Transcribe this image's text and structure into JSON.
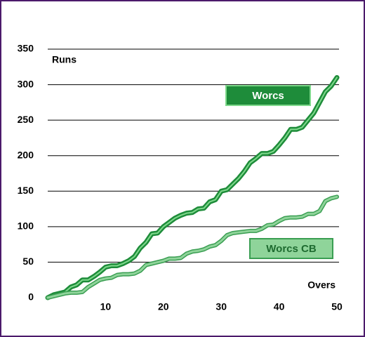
{
  "chart_data": {
    "type": "line",
    "y_label": "Runs",
    "x_label": "Overs",
    "x": [
      0,
      1,
      2,
      3,
      4,
      5,
      6,
      7,
      8,
      9,
      10,
      11,
      12,
      13,
      14,
      15,
      16,
      17,
      18,
      19,
      20,
      21,
      22,
      23,
      24,
      25,
      26,
      27,
      28,
      29,
      30,
      31,
      32,
      33,
      34,
      35,
      36,
      37,
      38,
      39,
      40,
      41,
      42,
      43,
      44,
      45,
      46,
      47,
      48,
      49,
      50
    ],
    "series": [
      {
        "name": "Worcs",
        "color": "#1e8c3a",
        "values": [
          0,
          4,
          6,
          8,
          15,
          18,
          25,
          25,
          30,
          36,
          43,
          45,
          45,
          48,
          52,
          58,
          70,
          78,
          90,
          91,
          100,
          106,
          112,
          116,
          119,
          120,
          125,
          126,
          135,
          138,
          150,
          152,
          160,
          168,
          178,
          190,
          196,
          203,
          203,
          206,
          215,
          225,
          237,
          237,
          240,
          250,
          260,
          275,
          290,
          298,
          310
        ]
      },
      {
        "name": "Worcs CB",
        "color": "#8fd49a",
        "values": [
          0,
          2,
          4,
          6,
          7,
          7,
          8,
          15,
          20,
          25,
          27,
          28,
          32,
          33,
          33,
          34,
          38,
          46,
          48,
          50,
          52,
          55,
          55,
          56,
          62,
          65,
          66,
          68,
          72,
          74,
          80,
          88,
          91,
          92,
          93,
          94,
          94,
          97,
          102,
          103,
          108,
          112,
          113,
          113,
          114,
          118,
          118,
          122,
          136,
          140,
          142
        ]
      }
    ],
    "xlim": [
      0,
      50
    ],
    "xticks": [
      10,
      20,
      30,
      40,
      50
    ],
    "ylim": [
      0,
      350
    ],
    "yticks": [
      0,
      50,
      100,
      150,
      200,
      250,
      300,
      350
    ],
    "grid": true
  }
}
